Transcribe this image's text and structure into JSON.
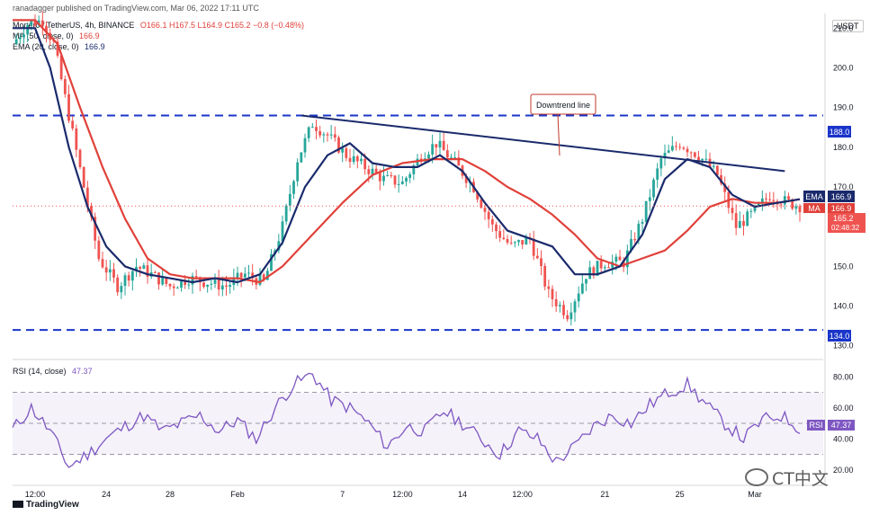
{
  "publisher": "ranadagger published on TradingView.com, Mar 06, 2022 17:11 UTC",
  "legend": {
    "symbol": "Monero / TetherUS, 4h, BINANCE",
    "ohlc": "O166.1 H167.5 L164.9 C165.2 −0.8 (−0.48%)",
    "ma_label": "MA (50, close, 0)",
    "ma_value": "166.9",
    "ema_label": "EMA (20, close, 0)",
    "ema_value": "166.9"
  },
  "currency": "USDT",
  "annotation": "Downtrend line",
  "badges": {
    "ema_tag": "EMA",
    "ema_val": "166.9",
    "ma_tag": "MA",
    "ma_val": "166.9",
    "price": "165.2",
    "countdown": "02:48:32",
    "resistance": "188.0",
    "support": "134.0",
    "rsi_tag": "RSI",
    "rsi_val": "47.37"
  },
  "rsi_legend": {
    "label": "RSI (14, close)",
    "value": "47.37"
  },
  "branding": "TradingView",
  "watermark": "CT中文",
  "colors": {
    "up": "#26a69a",
    "down": "#ef5350",
    "ma": "#e0413a",
    "ema": "#1a2a6c",
    "rsi": "#7e57c2",
    "hline": "#1a35c9"
  },
  "chart_data": {
    "type": "candlestick",
    "title": "Monero / TetherUS, 4h, BINANCE",
    "y_ticks": [
      "210.0",
      "200.0",
      "190.0",
      "180.0",
      "170.0",
      "160.0",
      "150.0",
      "140.0",
      "130.0"
    ],
    "ylim": [
      127,
      213
    ],
    "x_ticks": [
      "12:00",
      "24",
      "28",
      "Feb",
      "7",
      "12:00",
      "14",
      "12:00",
      "21",
      "25",
      "Mar"
    ],
    "horizontal_lines": [
      188.0,
      134.0
    ],
    "downtrend_line": {
      "from": [
        "Feb 7",
        188
      ],
      "to": [
        "Mar 5",
        174
      ]
    },
    "price_path": [
      [
        0,
        206
      ],
      [
        4,
        211
      ],
      [
        8,
        212
      ],
      [
        11,
        206
      ],
      [
        15,
        188
      ],
      [
        19,
        170
      ],
      [
        23,
        152
      ],
      [
        28,
        145
      ],
      [
        33,
        150
      ],
      [
        37,
        148
      ],
      [
        42,
        145
      ],
      [
        47,
        147
      ],
      [
        52,
        146
      ],
      [
        57,
        145
      ],
      [
        62,
        148
      ],
      [
        67,
        146
      ],
      [
        72,
        160
      ],
      [
        76,
        177
      ],
      [
        80,
        186
      ],
      [
        84,
        183
      ],
      [
        89,
        178
      ],
      [
        94,
        175
      ],
      [
        99,
        172
      ],
      [
        104,
        171
      ],
      [
        109,
        178
      ],
      [
        113,
        181
      ],
      [
        118,
        176
      ],
      [
        123,
        170
      ],
      [
        128,
        160
      ],
      [
        133,
        155
      ],
      [
        138,
        157
      ],
      [
        143,
        143
      ],
      [
        148,
        138
      ],
      [
        153,
        148
      ],
      [
        158,
        151
      ],
      [
        163,
        151
      ],
      [
        168,
        162
      ],
      [
        173,
        177
      ],
      [
        178,
        181
      ],
      [
        183,
        178
      ],
      [
        188,
        173
      ],
      [
        193,
        160
      ],
      [
        197,
        163
      ],
      [
        202,
        168
      ],
      [
        207,
        166
      ],
      [
        210,
        165.2
      ]
    ],
    "ema20_path": [
      [
        0,
        210
      ],
      [
        6,
        210
      ],
      [
        10,
        200
      ],
      [
        15,
        180
      ],
      [
        20,
        165
      ],
      [
        25,
        155
      ],
      [
        30,
        150
      ],
      [
        36,
        148
      ],
      [
        42,
        147
      ],
      [
        48,
        146
      ],
      [
        54,
        147
      ],
      [
        60,
        146
      ],
      [
        66,
        148
      ],
      [
        72,
        156
      ],
      [
        78,
        170
      ],
      [
        84,
        178
      ],
      [
        90,
        181
      ],
      [
        96,
        176
      ],
      [
        102,
        175
      ],
      [
        108,
        175
      ],
      [
        114,
        178
      ],
      [
        120,
        174
      ],
      [
        126,
        166
      ],
      [
        132,
        159
      ],
      [
        138,
        157
      ],
      [
        144,
        155
      ],
      [
        150,
        148
      ],
      [
        156,
        148
      ],
      [
        162,
        150
      ],
      [
        168,
        158
      ],
      [
        174,
        172
      ],
      [
        180,
        177
      ],
      [
        186,
        175
      ],
      [
        192,
        168
      ],
      [
        198,
        165
      ],
      [
        204,
        166
      ],
      [
        210,
        166.9
      ]
    ],
    "ma50_path": [
      [
        0,
        212
      ],
      [
        6,
        212
      ],
      [
        12,
        206
      ],
      [
        18,
        190
      ],
      [
        24,
        175
      ],
      [
        30,
        162
      ],
      [
        36,
        152
      ],
      [
        42,
        148
      ],
      [
        48,
        147
      ],
      [
        54,
        147
      ],
      [
        60,
        147
      ],
      [
        66,
        146
      ],
      [
        72,
        150
      ],
      [
        80,
        158
      ],
      [
        88,
        166
      ],
      [
        96,
        173
      ],
      [
        104,
        176
      ],
      [
        112,
        177
      ],
      [
        120,
        177
      ],
      [
        126,
        174
      ],
      [
        132,
        170
      ],
      [
        138,
        167
      ],
      [
        144,
        163
      ],
      [
        150,
        158
      ],
      [
        156,
        152
      ],
      [
        162,
        150
      ],
      [
        168,
        152
      ],
      [
        174,
        154
      ],
      [
        180,
        159
      ],
      [
        186,
        165
      ],
      [
        192,
        167
      ],
      [
        198,
        166
      ],
      [
        204,
        166
      ],
      [
        210,
        166.9
      ]
    ],
    "rsi": {
      "label": "RSI (14, close)",
      "value": 47.37,
      "y_ticks": [
        "80.00",
        "60.00",
        "40.00",
        "20.00"
      ],
      "ylim": [
        10,
        90
      ],
      "band": [
        30,
        70
      ],
      "path": [
        [
          0,
          46
        ],
        [
          5,
          60
        ],
        [
          10,
          45
        ],
        [
          15,
          22
        ],
        [
          20,
          30
        ],
        [
          25,
          40
        ],
        [
          30,
          48
        ],
        [
          35,
          55
        ],
        [
          40,
          45
        ],
        [
          45,
          50
        ],
        [
          50,
          55
        ],
        [
          55,
          45
        ],
        [
          60,
          52
        ],
        [
          65,
          40
        ],
        [
          70,
          60
        ],
        [
          75,
          75
        ],
        [
          80,
          82
        ],
        [
          85,
          65
        ],
        [
          90,
          60
        ],
        [
          95,
          50
        ],
        [
          100,
          35
        ],
        [
          105,
          48
        ],
        [
          110,
          45
        ],
        [
          115,
          58
        ],
        [
          120,
          50
        ],
        [
          125,
          40
        ],
        [
          130,
          30
        ],
        [
          135,
          45
        ],
        [
          140,
          40
        ],
        [
          145,
          25
        ],
        [
          150,
          35
        ],
        [
          155,
          48
        ],
        [
          160,
          55
        ],
        [
          165,
          50
        ],
        [
          170,
          62
        ],
        [
          175,
          70
        ],
        [
          180,
          75
        ],
        [
          185,
          62
        ],
        [
          190,
          50
        ],
        [
          195,
          40
        ],
        [
          200,
          52
        ],
        [
          205,
          55
        ],
        [
          210,
          47
        ]
      ]
    }
  }
}
